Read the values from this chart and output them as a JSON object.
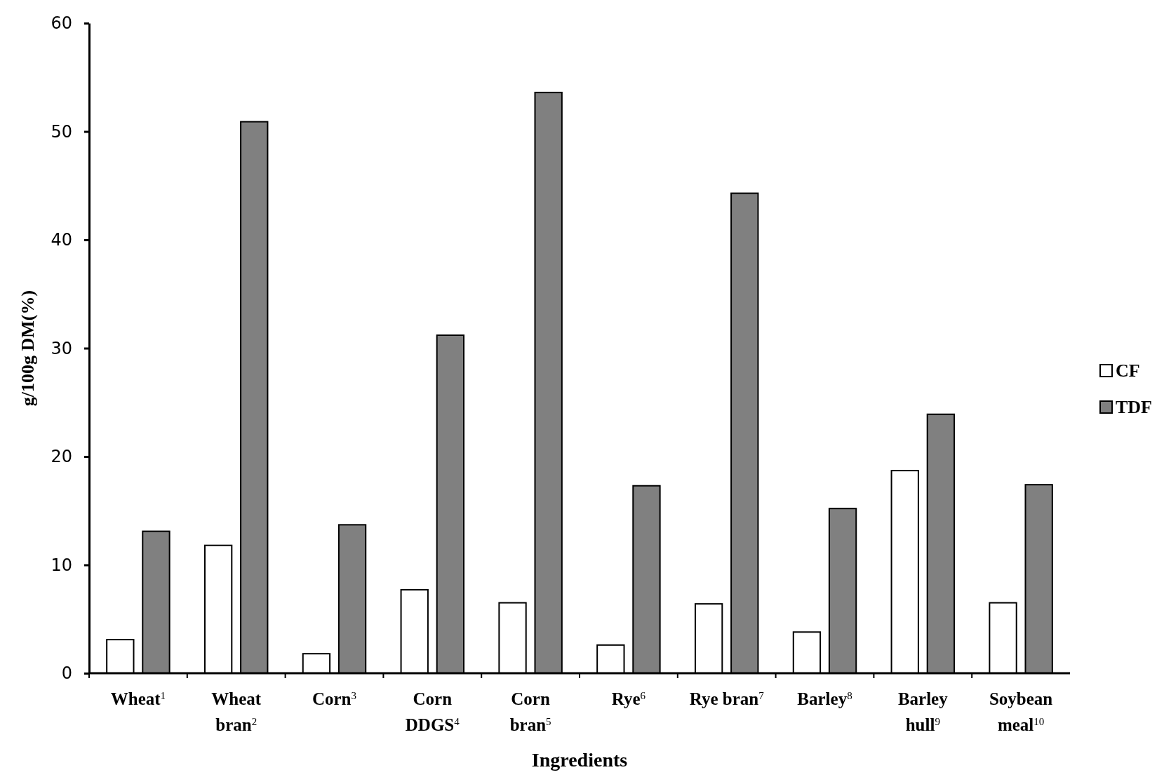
{
  "chart_data": {
    "type": "bar",
    "xlabel": "Ingredients",
    "ylabel": "g/100g DM(%)",
    "categories": [
      "Wheat$^{1}$",
      "Wheat bran$^{2}$",
      "Corn$^{3}$",
      "Corn DDGS$^{4}$",
      "Corn bran$^{5}$",
      "Rye$^{6}$",
      "Rye bran$^{7}$",
      "Barley$^{8}$",
      "Barley hull$^{9}$",
      "Soybean meal$^{10}$"
    ],
    "series": [
      {
        "name": "CF",
        "color": "#ffffff",
        "values": [
          3.1,
          11.8,
          1.8,
          7.7,
          6.5,
          2.6,
          6.4,
          3.8,
          18.7,
          6.5
        ]
      },
      {
        "name": "TDF",
        "color": "#808080",
        "values": [
          13.1,
          50.9,
          13.7,
          31.2,
          53.6,
          17.3,
          44.3,
          15.2,
          23.9,
          17.4
        ]
      }
    ],
    "ylim": [
      0,
      60
    ],
    "yticks": [
      0,
      10,
      20,
      30,
      40,
      50,
      60
    ],
    "grid": false,
    "legend": "right"
  }
}
